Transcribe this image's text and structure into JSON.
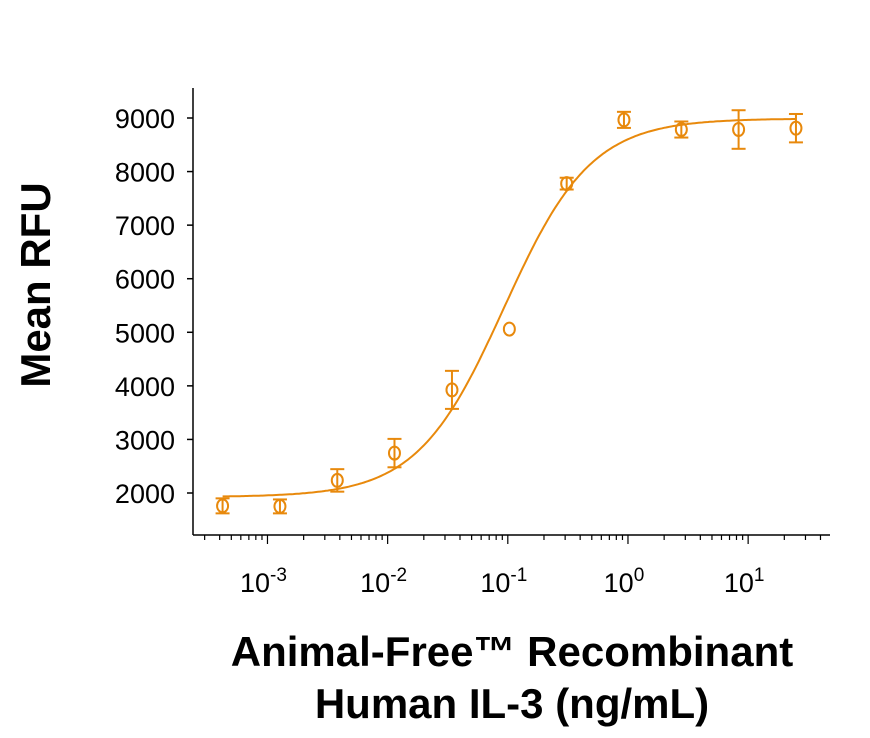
{
  "chart_data": {
    "type": "scatter",
    "xlabel": "Animal-Free™ Recombinant Human IL-3 (ng/mL)",
    "xlabel_lines": [
      "Animal-Free™ Recombinant",
      "Human IL-3 (ng/mL)"
    ],
    "ylabel": "Mean RFU",
    "xscale": "log",
    "xlim": [
      0.00024,
      48
    ],
    "ylim": [
      1216,
      9560
    ],
    "x_ticks": [
      {
        "value": 0.001,
        "base": "10",
        "exp": "-3"
      },
      {
        "value": 0.01,
        "base": "10",
        "exp": "-2"
      },
      {
        "value": 0.1,
        "base": "10",
        "exp": "-1"
      },
      {
        "value": 1,
        "base": "10",
        "exp": "0"
      },
      {
        "value": 10,
        "base": "10",
        "exp": "1"
      }
    ],
    "y_ticks": [
      "2000",
      "3000",
      "4000",
      "5000",
      "6000",
      "7000",
      "8000",
      "9000"
    ],
    "grid": false,
    "color": "#E8890C",
    "marker": "open-circle",
    "points": [
      {
        "x": 0.000423,
        "y": 1760,
        "err": 140
      },
      {
        "x": 0.00127,
        "y": 1750,
        "err": 130
      },
      {
        "x": 0.00381,
        "y": 2235,
        "err": 210
      },
      {
        "x": 0.0114,
        "y": 2745,
        "err": 265
      },
      {
        "x": 0.0343,
        "y": 3925,
        "err": 355
      },
      {
        "x": 0.103,
        "y": 5060,
        "err": 0
      },
      {
        "x": 0.309,
        "y": 7775,
        "err": 110
      },
      {
        "x": 0.926,
        "y": 8965,
        "err": 150
      },
      {
        "x": 2.78,
        "y": 8785,
        "err": 150
      },
      {
        "x": 8.33,
        "y": 8785,
        "err": 360
      },
      {
        "x": 25,
        "y": 8810,
        "err": 265
      }
    ],
    "fit": {
      "model": "4PL",
      "bottom": 1925,
      "top": 8990,
      "ec50": 0.093,
      "hill": 1.2
    }
  }
}
